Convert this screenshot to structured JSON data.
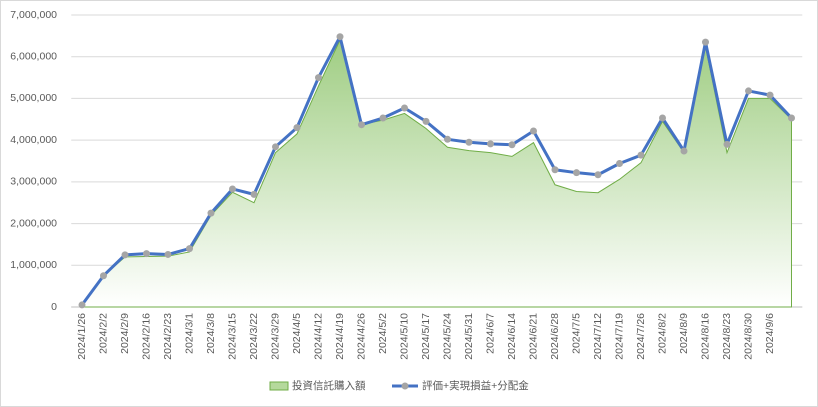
{
  "chart_data": {
    "type": "combo",
    "categories": [
      "2024/1/26",
      "2024/2/2",
      "2024/2/9",
      "2024/2/16",
      "2024/2/23",
      "2024/3/1",
      "2024/3/8",
      "2024/3/15",
      "2024/3/22",
      "2024/3/29",
      "2024/4/5",
      "2024/4/12",
      "2024/4/19",
      "2024/4/26",
      "2024/5/2",
      "2024/5/10",
      "2024/5/17",
      "2024/5/24",
      "2024/5/31",
      "2024/6/7",
      "2024/6/14",
      "2024/6/21",
      "2024/6/28",
      "2024/7/5",
      "2024/7/12",
      "2024/7/19",
      "2024/7/26",
      "2024/8/2",
      "2024/8/9",
      "2024/8/16",
      "2024/8/23",
      "2024/8/30",
      "2024/9/6",
      null
    ],
    "series": [
      {
        "name": "投資信託購入額",
        "type": "area",
        "color": "#70ad47",
        "values": [
          50000,
          750000,
          1200000,
          1210000,
          1220000,
          1320000,
          2200000,
          2750000,
          2500000,
          3700000,
          4150000,
          5300000,
          6400000,
          4380000,
          4480000,
          4640000,
          4280000,
          3830000,
          3750000,
          3700000,
          3610000,
          3940000,
          2930000,
          2770000,
          2740000,
          3060000,
          3460000,
          4450000,
          3700000,
          6250000,
          3700000,
          5000000,
          5000000,
          4500000
        ]
      },
      {
        "name": "評価+実現損益+分配金",
        "type": "line",
        "color": "#4472c4",
        "marker_color": "#a5a5a5",
        "values": [
          50000,
          750000,
          1250000,
          1280000,
          1260000,
          1400000,
          2250000,
          2830000,
          2700000,
          3840000,
          4300000,
          5500000,
          6480000,
          4370000,
          4530000,
          4770000,
          4450000,
          4020000,
          3950000,
          3910000,
          3890000,
          4220000,
          3290000,
          3220000,
          3170000,
          3440000,
          3640000,
          4530000,
          3740000,
          6350000,
          3900000,
          5180000,
          5080000,
          4530000
        ]
      }
    ],
    "ylim": [
      0,
      7000000
    ],
    "yticks": [
      0,
      {
        "value": 1000000,
        "label": "1,000,000"
      },
      {
        "value": 2000000,
        "label": "2,000,000"
      },
      {
        "value": 3000000,
        "label": "3,000,000"
      },
      {
        "value": 4000000,
        "label": "4,000,000"
      },
      {
        "value": 5000000,
        "label": "5,000,000"
      },
      {
        "value": 6000000,
        "label": "6,000,000"
      },
      {
        "value": 7000000,
        "label": "7,000,000"
      }
    ],
    "grid": true,
    "legend": "bottom"
  }
}
